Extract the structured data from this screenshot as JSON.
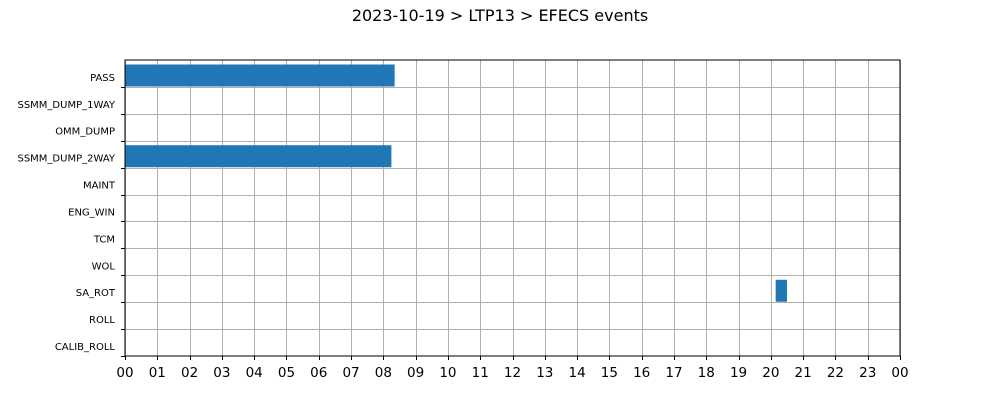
{
  "chart_data": {
    "type": "bar",
    "orientation": "horizontal",
    "subtype": "timeline",
    "title": "2023-10-19 > LTP13 > EFECS events",
    "xlabel": "",
    "ylabel": "",
    "xlim": [
      0,
      24
    ],
    "x_unit": "hour",
    "x_tick_labels": [
      "00",
      "01",
      "02",
      "03",
      "04",
      "05",
      "06",
      "07",
      "08",
      "09",
      "10",
      "11",
      "12",
      "13",
      "14",
      "15",
      "16",
      "17",
      "18",
      "19",
      "20",
      "21",
      "22",
      "23",
      "00"
    ],
    "categories": [
      "PASS",
      "SSMM_DUMP_1WAY",
      "OMM_DUMP",
      "SSMM_DUMP_2WAY",
      "MAINT",
      "ENG_WIN",
      "TCM",
      "WOL",
      "SA_ROT",
      "ROLL",
      "CALIB_ROLL"
    ],
    "events": [
      {
        "category": "PASS",
        "start": 0.0,
        "end": 8.35
      },
      {
        "category": "SSMM_DUMP_2WAY",
        "start": 0.0,
        "end": 8.25
      },
      {
        "category": "SA_ROT",
        "start": 20.15,
        "end": 20.5
      }
    ],
    "grid": true,
    "bar_color": "#1f77b4"
  }
}
